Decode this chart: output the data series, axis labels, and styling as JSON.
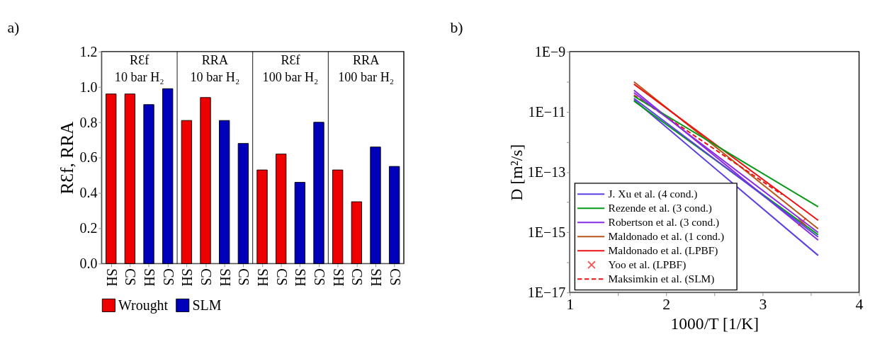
{
  "chart_data": [
    {
      "type": "bar",
      "title": "a)",
      "ylabel": "RƐf, RRA",
      "categories": [
        "SH",
        "CS",
        "SH",
        "CS",
        "SH",
        "CS",
        "SH",
        "CS",
        "SH",
        "CS",
        "SH",
        "CS",
        "SH",
        "CS",
        "SH",
        "CS"
      ],
      "series": [
        {
          "name": "Wrought",
          "color": "#ee0000",
          "values": [
            0.96,
            0.96,
            null,
            null,
            0.81,
            0.94,
            null,
            null,
            0.53,
            0.62,
            null,
            null,
            0.53,
            0.35,
            null,
            null
          ]
        },
        {
          "name": "SLM",
          "color": "#0000bb",
          "values": [
            null,
            null,
            0.9,
            0.99,
            null,
            null,
            0.81,
            0.68,
            null,
            null,
            0.46,
            0.8,
            null,
            null,
            0.66,
            0.55
          ]
        }
      ],
      "ylim": [
        0,
        1.2
      ],
      "yticks": [
        {
          "value": 0,
          "label": "0.0"
        },
        {
          "value": 0.2,
          "label": "0.2"
        },
        {
          "value": 0.4,
          "label": "0.4"
        },
        {
          "value": 0.6,
          "label": "0.6"
        },
        {
          "value": 0.8,
          "label": "0.8"
        },
        {
          "value": 1,
          "label": "1.0"
        },
        1.2
      ],
      "annotations": [
        "RƐf\n10 bar H₂",
        "RRA\n10 bar H₂",
        "RƐf\n100 bar H₂",
        "RRA\n100 bar H₂"
      ],
      "legend": "bottom"
    },
    {
      "type": "line",
      "title": "b)",
      "xlabel": "1000/T [1/K]",
      "ylabel": "D [m²/s]",
      "x": [
        1.666,
        3.576
      ],
      "log": "y",
      "series": [
        {
          "name": "J. Xu et al. (4 cond.)",
          "color": "#5b3fe0",
          "values": [
            2.5e-11,
            1.7e-16
          ]
        },
        {
          "name": "Rezende et al. (3 cond.)",
          "color": "#0a9a1a",
          "values": [
            2.3e-11,
            8.3e-16
          ]
        },
        {
          "name": "Robertson et al. (3 cond.)",
          "color": "#8a2be2",
          "values": [
            5.2e-11,
            5.5e-16
          ]
        },
        {
          "name": "Maldonado et al. (1 cond.)",
          "color": "#b5561b",
          "values": [
            1e-10,
            1.3e-15
          ]
        },
        {
          "name": "Maldonado et al. (LPBF)",
          "color": "#ee1111",
          "values": [
            8.3e-11,
            2.5e-15
          ]
        },
        {
          "name": "Yoo et al. (LPBF)",
          "color": "#ee1111",
          "type": "scatter",
          "marker": "cross",
          "x": [
            3.41
          ],
          "values": [
            2.2e-15
          ]
        },
        {
          "name": "Maksimkin et al. (SLM)",
          "color": "#ee1111",
          "line_style": "dashed",
          "x": [
            1.666,
            3.2
          ],
          "values": [
            3.6e-11,
            1.8e-14
          ]
        },
        {
          "color": "#5b3fe0",
          "values": [
            2.8e-11,
            7e-16
          ]
        },
        {
          "color": "#0a9a1a",
          "values": [
            3.3e-11,
            7e-15
          ]
        },
        {
          "color": "#8a2be2",
          "values": [
            4.3e-11,
            9.8e-16
          ]
        }
      ],
      "xlim": [
        1,
        4
      ],
      "xticks": [
        1,
        {
          "value": 1.5,
          "label": null
        },
        2,
        {
          "value": 2.5,
          "label": null
        },
        3,
        {
          "value": 3.5,
          "label": null
        },
        4
      ],
      "ylim": [
        1e-17,
        1e-09
      ],
      "yticks": [
        {
          "value": 1e-17,
          "label": "1E−17"
        },
        {
          "value": 1e-16,
          "label": null
        },
        {
          "value": 1e-15,
          "label": "1E−15"
        },
        {
          "value": 1e-14,
          "label": null
        },
        {
          "value": 1e-13,
          "label": "1E−13"
        },
        {
          "value": 1e-12,
          "label": null
        },
        {
          "value": 1e-11,
          "label": "1E−11"
        },
        {
          "value": 1e-10,
          "label": null
        },
        {
          "value": 1e-09,
          "label": "1E−9"
        }
      ],
      "legend": "bottom left"
    }
  ]
}
